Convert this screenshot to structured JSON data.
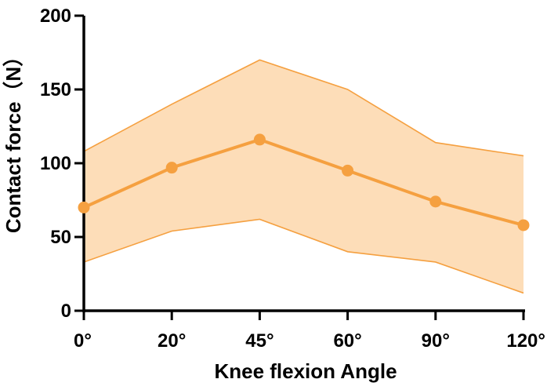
{
  "chart_data": {
    "type": "line",
    "title": "",
    "xlabel": "Knee flexion Angle",
    "ylabel": "Contact force（N）",
    "categories": [
      "0°",
      "20°",
      "45°",
      "60°",
      "90°",
      "120°"
    ],
    "series": [
      {
        "values": [
          70,
          97,
          116,
          95,
          74,
          58
        ],
        "upper": [
          108,
          140,
          170,
          150,
          114,
          105
        ],
        "lower": [
          33,
          54,
          62,
          40,
          33,
          12
        ]
      }
    ],
    "ylim": [
      0,
      200
    ],
    "yticks": [
      0,
      50,
      100,
      150,
      200
    ],
    "grid": false,
    "colors": {
      "line": "#F5A040",
      "band_fill": "#FDDDB8",
      "band_edge": "#F5A040",
      "axis": "#000000"
    }
  }
}
